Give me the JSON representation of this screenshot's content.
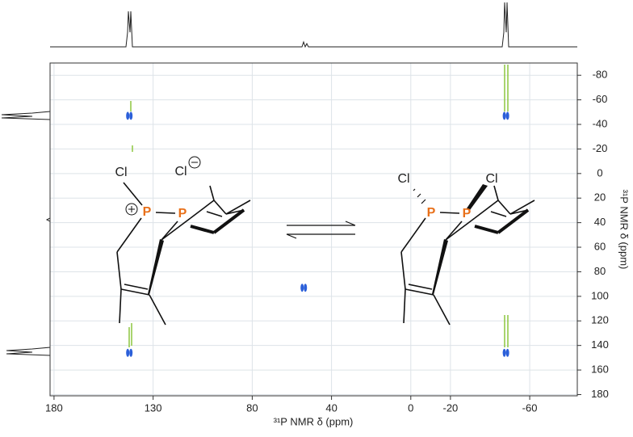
{
  "chart_data": {
    "type": "scatter",
    "x_label": "³¹P NMR δ (ppm)",
    "y_label": "³¹P NMR δ (ppm)",
    "x": [
      142,
      142,
      -48,
      -48,
      54
    ],
    "values": [
      -47,
      146,
      -47,
      146,
      93
    ],
    "color": "#2b5fd9",
    "xlim": [
      182,
      -84
    ],
    "ylim": [
      -90,
      181
    ],
    "xticks": [
      180,
      130,
      80,
      40,
      0,
      -20,
      -60
    ],
    "yticks": [
      -80,
      -60,
      -40,
      -20,
      0,
      20,
      40,
      60,
      80,
      100,
      120,
      140,
      160,
      180
    ],
    "grid": true,
    "annotations": [
      "Cl",
      "Cl",
      "P",
      "P",
      "Cl",
      "Cl",
      "P",
      "P"
    ]
  }
}
